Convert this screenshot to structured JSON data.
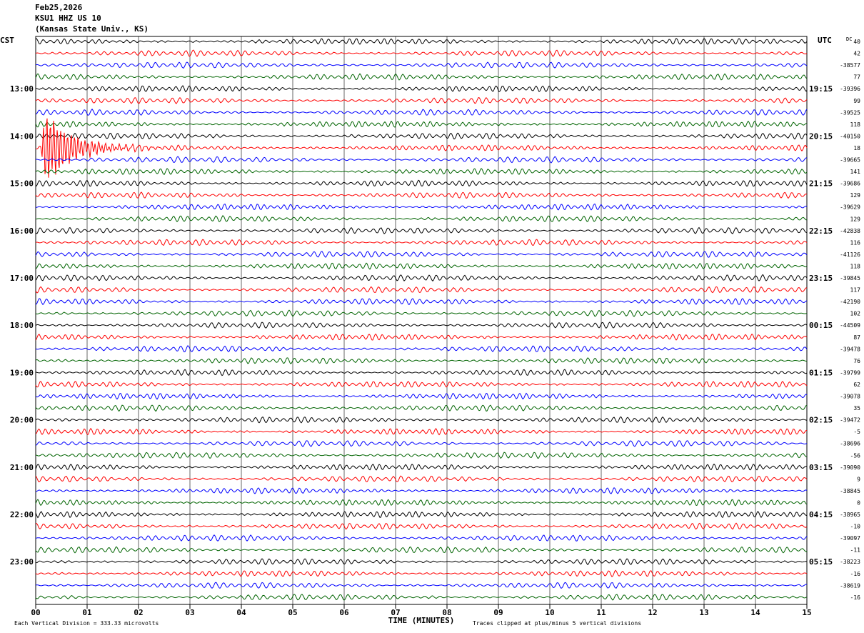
{
  "header": {
    "date": "Feb25,2026",
    "station": "KSU1 HHZ US 10",
    "site": "(Kansas State Univ., KS)"
  },
  "footer": {
    "scale_note": "Each Vertical Division =  333.33 microvolts",
    "clip_note": "Traces clipped at plus/minus 5 vertical divisions"
  },
  "colors": {
    "trace_cycle": [
      "#000000",
      "#ff0000",
      "#0000ff",
      "#006400"
    ],
    "grid": "#000000"
  },
  "chart_data": {
    "type": "line",
    "title": "",
    "xlabel": "TIME (MINUTES)",
    "left_axis_label": "CST",
    "right_axis_label": "UTC",
    "dc_label": "DC",
    "x_ticks": [
      "00",
      "01",
      "02",
      "03",
      "04",
      "05",
      "06",
      "07",
      "08",
      "09",
      "10",
      "11",
      "12",
      "13",
      "14",
      "15"
    ],
    "xlim": [
      0,
      15
    ],
    "grid": true,
    "trace_count": 48,
    "minutes_per_trace": 15,
    "left_time_labels": [
      {
        "trace": 4,
        "label": "13:00"
      },
      {
        "trace": 8,
        "label": "14:00"
      },
      {
        "trace": 12,
        "label": "15:00"
      },
      {
        "trace": 16,
        "label": "16:00"
      },
      {
        "trace": 20,
        "label": "17:00"
      },
      {
        "trace": 24,
        "label": "18:00"
      },
      {
        "trace": 28,
        "label": "19:00"
      },
      {
        "trace": 32,
        "label": "20:00"
      },
      {
        "trace": 36,
        "label": "21:00"
      },
      {
        "trace": 40,
        "label": "22:00"
      },
      {
        "trace": 44,
        "label": "23:00"
      }
    ],
    "right_time_labels": [
      {
        "trace": 4,
        "label": "19:15"
      },
      {
        "trace": 8,
        "label": "20:15"
      },
      {
        "trace": 12,
        "label": "21:15"
      },
      {
        "trace": 16,
        "label": "22:15"
      },
      {
        "trace": 20,
        "label": "23:15"
      },
      {
        "trace": 24,
        "label": "00:15"
      },
      {
        "trace": 28,
        "label": "01:15"
      },
      {
        "trace": 32,
        "label": "02:15"
      },
      {
        "trace": 36,
        "label": "03:15"
      },
      {
        "trace": 40,
        "label": "04:15"
      },
      {
        "trace": 44,
        "label": "05:15"
      }
    ],
    "dc_offsets": [
      "40",
      "42",
      "-38577",
      "77",
      "-39396",
      "99",
      "-39525",
      "118",
      "-40150",
      "18",
      "-39665",
      "141",
      "-39686",
      "129",
      "-39629",
      "129",
      "-42838",
      "116",
      "-41126",
      "118",
      "-39845",
      "117",
      "-42190",
      "102",
      "-44509",
      "87",
      "-39478",
      "76",
      "-39799",
      "62",
      "-39078",
      "35",
      "-39472",
      "-5",
      "-38696",
      "-56",
      "-39090",
      "9",
      "-38845",
      "0",
      "-38965",
      "-10",
      "-39097",
      "-11",
      "-38223",
      "-16",
      "-38619",
      "-16"
    ],
    "events": [
      {
        "trace": 9,
        "start_minute": 0.1,
        "peak_amplitude_divisions": 5,
        "label": ""
      }
    ]
  }
}
